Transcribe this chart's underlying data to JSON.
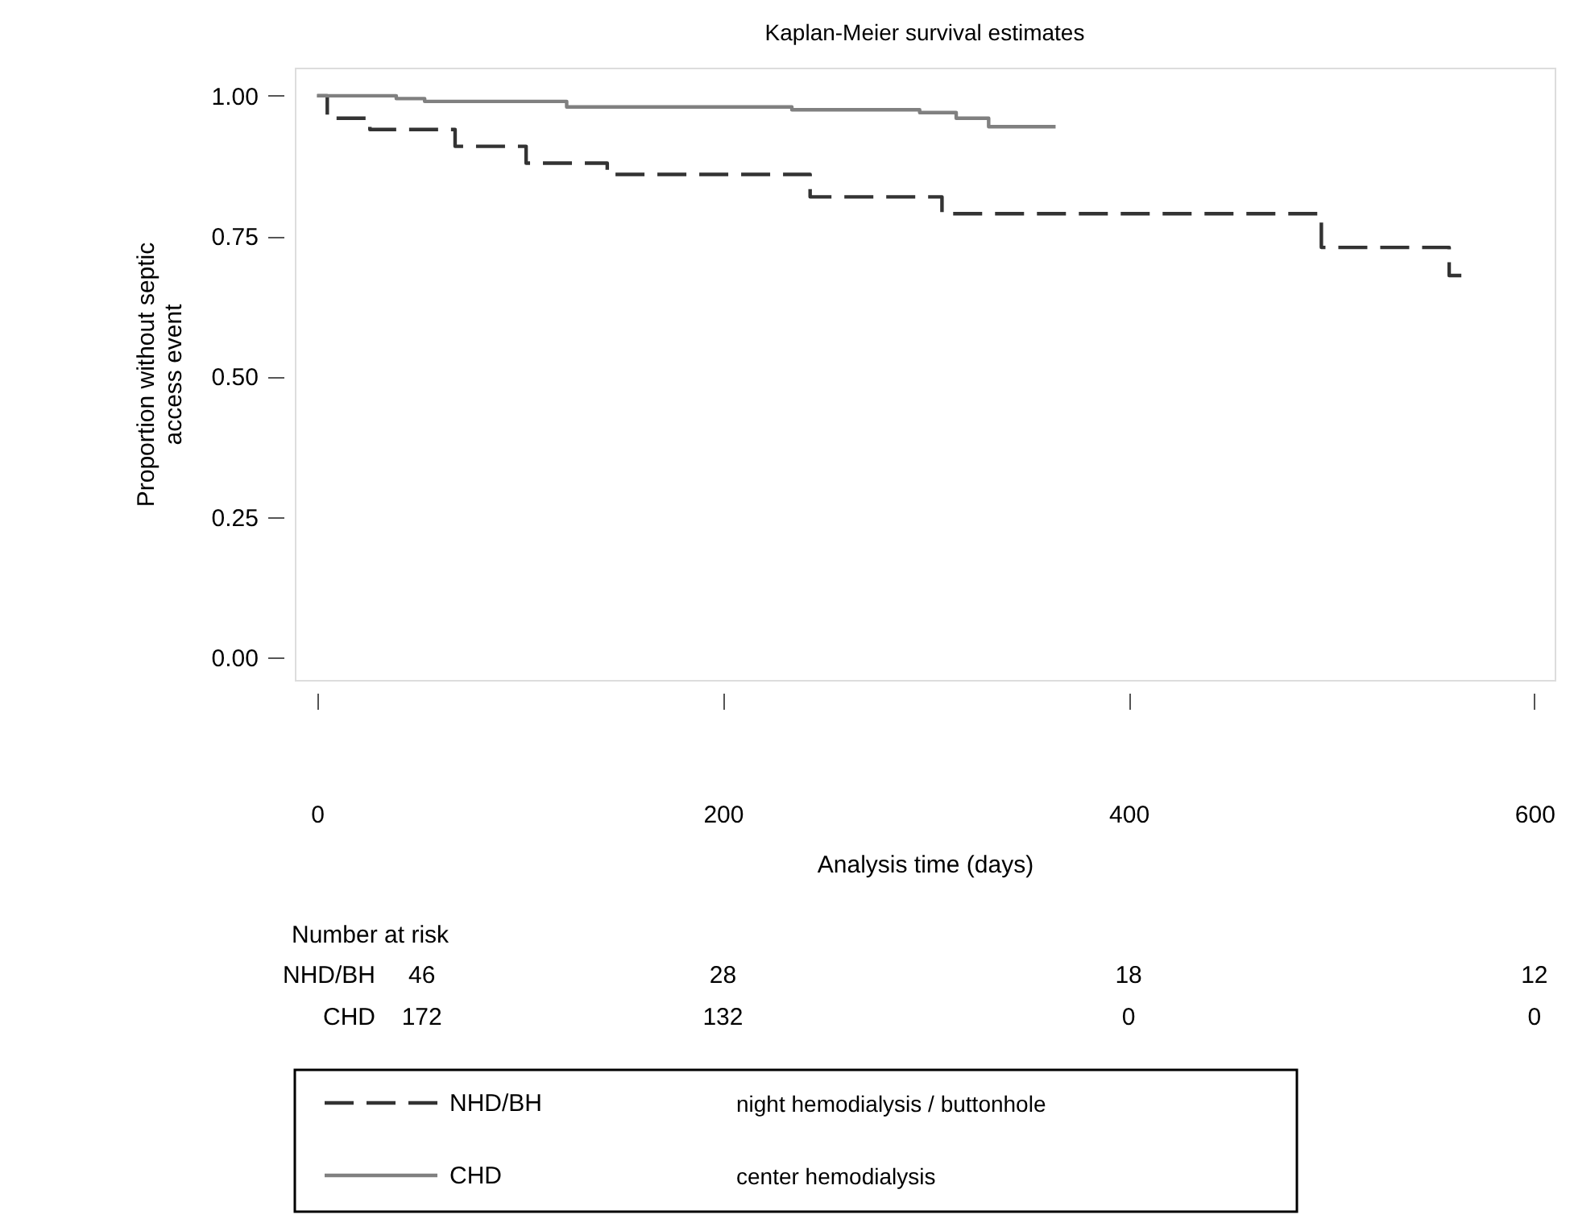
{
  "chart_data": {
    "type": "step",
    "title": "Kaplan-Meier survival estimates",
    "xlabel": "Analysis time (days)",
    "ylabel": "Proportion without septic\naccess event",
    "series": [
      {
        "name": "NHD/BH",
        "color": "#333333",
        "line_style": "dashed",
        "x": [
          0,
          5,
          26,
          68,
          103,
          143,
          243,
          308,
          495,
          558,
          564
        ],
        "values": [
          1.0,
          0.96,
          0.94,
          0.91,
          0.88,
          0.86,
          0.82,
          0.79,
          0.73,
          0.68,
          0.68
        ]
      },
      {
        "name": "CHD",
        "color": "#808080",
        "line_style": "solid",
        "x": [
          0,
          39,
          53,
          123,
          234,
          297,
          315,
          331,
          364
        ],
        "values": [
          1.0,
          0.995,
          0.99,
          0.98,
          0.975,
          0.97,
          0.96,
          0.945,
          0.945
        ]
      }
    ],
    "xlim": [
      -11,
      610
    ],
    "ylim": [
      -0.04,
      1.05
    ],
    "xticks": [
      0,
      200,
      400,
      600
    ],
    "yticks": [
      {
        "value": 0,
        "label": "0.00"
      },
      {
        "value": 0.25,
        "label": "0.25"
      },
      {
        "value": 0.5,
        "label": "0.50"
      },
      {
        "value": 0.75,
        "label": "0.75"
      },
      {
        "value": 1.0,
        "label": "1.00"
      }
    ],
    "grid": false,
    "legend": "bottom",
    "marker": "none",
    "annotations": [
      "Number at risk",
      "46",
      "28",
      "18",
      "12",
      "172",
      "132",
      "0",
      "0",
      "night hemodialysis / buttonhole",
      "center hemodialysis",
      "NHD/BH",
      "CHD"
    ]
  }
}
